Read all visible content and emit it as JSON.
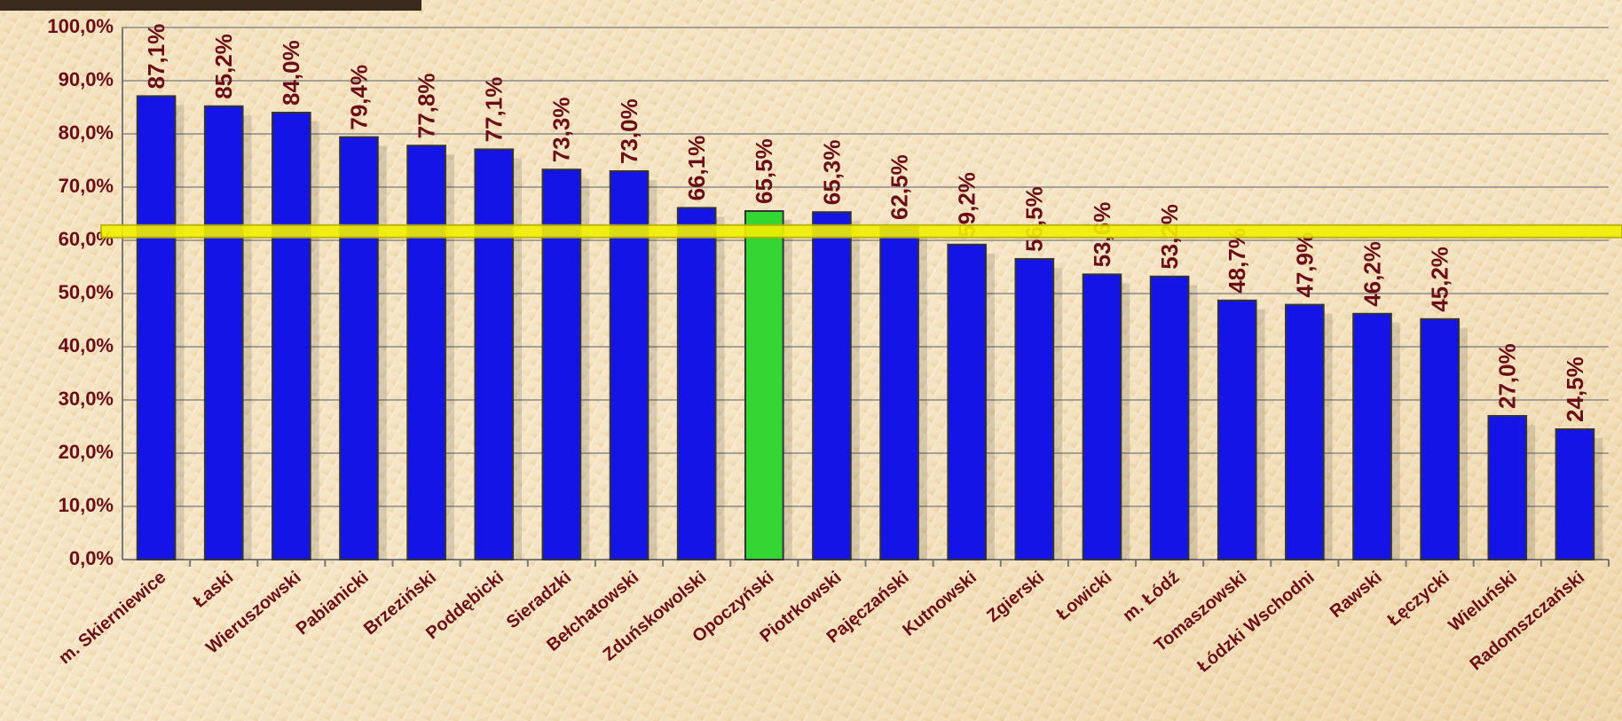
{
  "chart_data": {
    "type": "bar",
    "categories": [
      "m. Skierniewice",
      "Łaski",
      "Wieruszowski",
      "Pabianicki",
      "Brzeziński",
      "Poddębicki",
      "Sieradzki",
      "Bełchatowski",
      "Zduńskowolski",
      "Opoczyński",
      "Piotrkowski",
      "Pajęczański",
      "Kutnowski",
      "Zgierski",
      "Łowicki",
      "m. Łódź",
      "Tomaszowski",
      "Łódzki Wschodni",
      "Rawski",
      "Łęczycki",
      "Wieluński",
      "Radomszczański"
    ],
    "values": [
      87.1,
      85.2,
      84.0,
      79.4,
      77.8,
      77.1,
      73.3,
      73.0,
      66.1,
      65.5,
      65.3,
      62.5,
      59.2,
      56.5,
      53.6,
      53.2,
      48.7,
      47.9,
      46.2,
      45.2,
      27.0,
      24.5
    ],
    "value_labels": [
      "87,1%",
      "85,2%",
      "84,0%",
      "79,4%",
      "77,8%",
      "77,1%",
      "73,3%",
      "73,0%",
      "66,1%",
      "65,5%",
      "65,3%",
      "62,5%",
      "59,2%",
      "56,5%",
      "53,6%",
      "53,2%",
      "48,7%",
      "47,9%",
      "46,2%",
      "45,2%",
      "27,0%",
      "24,5%"
    ],
    "colors": [
      "#1414e6",
      "#1414e6",
      "#1414e6",
      "#1414e6",
      "#1414e6",
      "#1414e6",
      "#1414e6",
      "#1414e6",
      "#1414e6",
      "#33d633",
      "#1414e6",
      "#1414e6",
      "#1414e6",
      "#1414e6",
      "#1414e6",
      "#1414e6",
      "#1414e6",
      "#1414e6",
      "#1414e6",
      "#1414e6",
      "#1414e6",
      "#1414e6"
    ],
    "reference_line": {
      "value": 61.7,
      "color": "#f2f000"
    },
    "ylim": [
      0,
      100
    ],
    "yticks": [
      {
        "value": 0,
        "label": "0,0%"
      },
      {
        "value": 10,
        "label": "10,0%"
      },
      {
        "value": 20,
        "label": "20,0%"
      },
      {
        "value": 30,
        "label": "30,0%"
      },
      {
        "value": 40,
        "label": "40,0%"
      },
      {
        "value": 50,
        "label": "50,0%"
      },
      {
        "value": 60,
        "label": "60,0%"
      },
      {
        "value": 70,
        "label": "70,0%"
      },
      {
        "value": 80,
        "label": "80,0%"
      },
      {
        "value": 90,
        "label": "90,0%"
      },
      {
        "value": 100,
        "label": "100,0%"
      }
    ],
    "grid": true
  }
}
